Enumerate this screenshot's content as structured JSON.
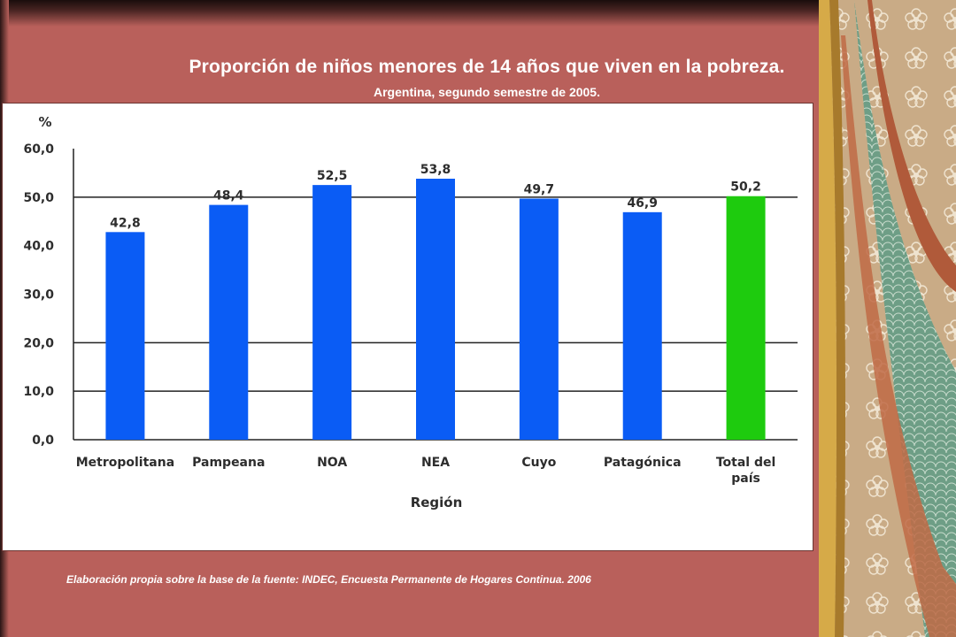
{
  "slide": {
    "title": "Proporción de niños menores de 14 años que viven en la pobreza.",
    "subtitle": "Argentina, segundo semestre de 2005.",
    "source": "Elaboración propia sobre la base de la fuente: INDEC, Encuesta Permanente de Hogares Continua. 2006"
  },
  "chart_data": {
    "type": "bar",
    "ylabel": "%",
    "xlabel": "Región",
    "categories": [
      "Metropolitana",
      "Pampeana",
      "NOA",
      "NEA",
      "Cuyo",
      "Patagónica",
      "Total del país"
    ],
    "category_lines": [
      [
        "Metropolitana"
      ],
      [
        "Pampeana"
      ],
      [
        "NOA"
      ],
      [
        "NEA"
      ],
      [
        "Cuyo"
      ],
      [
        "Patagónica"
      ],
      [
        "Total del",
        "país"
      ]
    ],
    "values": [
      42.8,
      48.4,
      52.5,
      53.8,
      49.7,
      46.9,
      50.2
    ],
    "value_labels": [
      "42,8",
      "48,4",
      "52,5",
      "53,8",
      "49,7",
      "46,9",
      "50,2"
    ],
    "yticks": [
      0,
      10,
      20,
      30,
      40,
      50,
      60
    ],
    "ytick_labels": [
      "0,0",
      "10,0",
      "20,0",
      "30,0",
      "40,0",
      "50,0",
      "60,0"
    ],
    "ylim": [
      0,
      60
    ],
    "gridlines": [
      10,
      20,
      50
    ],
    "colors": {
      "bar": "#0a5cf5",
      "highlight_bar": "#1ecb0e",
      "highlight_index": 6,
      "text": "#2d2d2d",
      "grid": "#222222"
    }
  }
}
